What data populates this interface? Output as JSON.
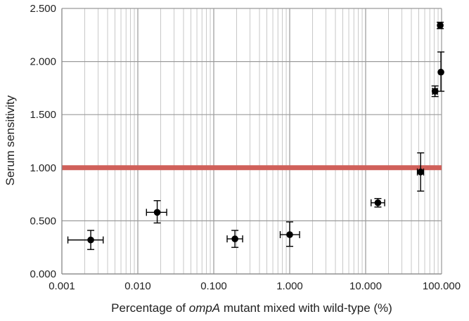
{
  "chart_data": {
    "type": "scatter",
    "title": "",
    "xlabel": {
      "prefix": "Percentage of ",
      "italic": "ompA",
      "suffix": " mutant mixed with wild-type (%)"
    },
    "ylabel": "Serum sensitivity",
    "x_scale": "log",
    "xlim": [
      0.001,
      100
    ],
    "ylim": [
      0,
      2.5
    ],
    "x_ticks": [
      {
        "value": 0.001,
        "label": "0.001"
      },
      {
        "value": 0.01,
        "label": "0.010"
      },
      {
        "value": 0.1,
        "label": "0.100"
      },
      {
        "value": 1,
        "label": "1.000"
      },
      {
        "value": 10,
        "label": "10.000"
      },
      {
        "value": 100,
        "label": "100.000"
      }
    ],
    "y_ticks": [
      {
        "value": 0,
        "label": "0.000"
      },
      {
        "value": 0.5,
        "label": "0.500"
      },
      {
        "value": 1,
        "label": "1.000"
      },
      {
        "value": 1.5,
        "label": "1.500"
      },
      {
        "value": 2,
        "label": "2.000"
      },
      {
        "value": 2.5,
        "label": "2.500"
      }
    ],
    "grid": true,
    "reference_line": {
      "y": 1.0,
      "color": "#d0605a"
    },
    "points": [
      {
        "x": 0.0024,
        "y": 0.32,
        "x_lo": 0.0012,
        "x_hi": 0.0035,
        "y_lo": 0.23,
        "y_hi": 0.41
      },
      {
        "x": 0.018,
        "y": 0.58,
        "x_lo": 0.013,
        "x_hi": 0.024,
        "y_lo": 0.48,
        "y_hi": 0.69
      },
      {
        "x": 0.19,
        "y": 0.33,
        "x_lo": 0.15,
        "x_hi": 0.24,
        "y_lo": 0.25,
        "y_hi": 0.41
      },
      {
        "x": 1.0,
        "y": 0.37,
        "x_lo": 0.75,
        "x_hi": 1.35,
        "y_lo": 0.26,
        "y_hi": 0.49
      },
      {
        "x": 14.5,
        "y": 0.67,
        "x_lo": 11.8,
        "x_hi": 17.8,
        "y_lo": 0.63,
        "y_hi": 0.71
      },
      {
        "x": 53,
        "y": 0.96,
        "x_lo": 48,
        "x_hi": 58,
        "y_lo": 0.78,
        "y_hi": 1.14
      },
      {
        "x": 82,
        "y": 1.72,
        "x_lo": 76,
        "x_hi": 88,
        "y_lo": 1.67,
        "y_hi": 1.77
      },
      {
        "x": 98,
        "y": 1.9,
        "x_lo": 98,
        "x_hi": 98,
        "y_lo": 1.72,
        "y_hi": 2.09
      },
      {
        "x": 96,
        "y": 2.34,
        "x_lo": 90,
        "x_hi": 100,
        "y_lo": 2.31,
        "y_hi": 2.37
      }
    ],
    "marker_color": "#000000",
    "grid_color": "#c8c8c8",
    "major_grid_color": "#9a9a9a"
  }
}
